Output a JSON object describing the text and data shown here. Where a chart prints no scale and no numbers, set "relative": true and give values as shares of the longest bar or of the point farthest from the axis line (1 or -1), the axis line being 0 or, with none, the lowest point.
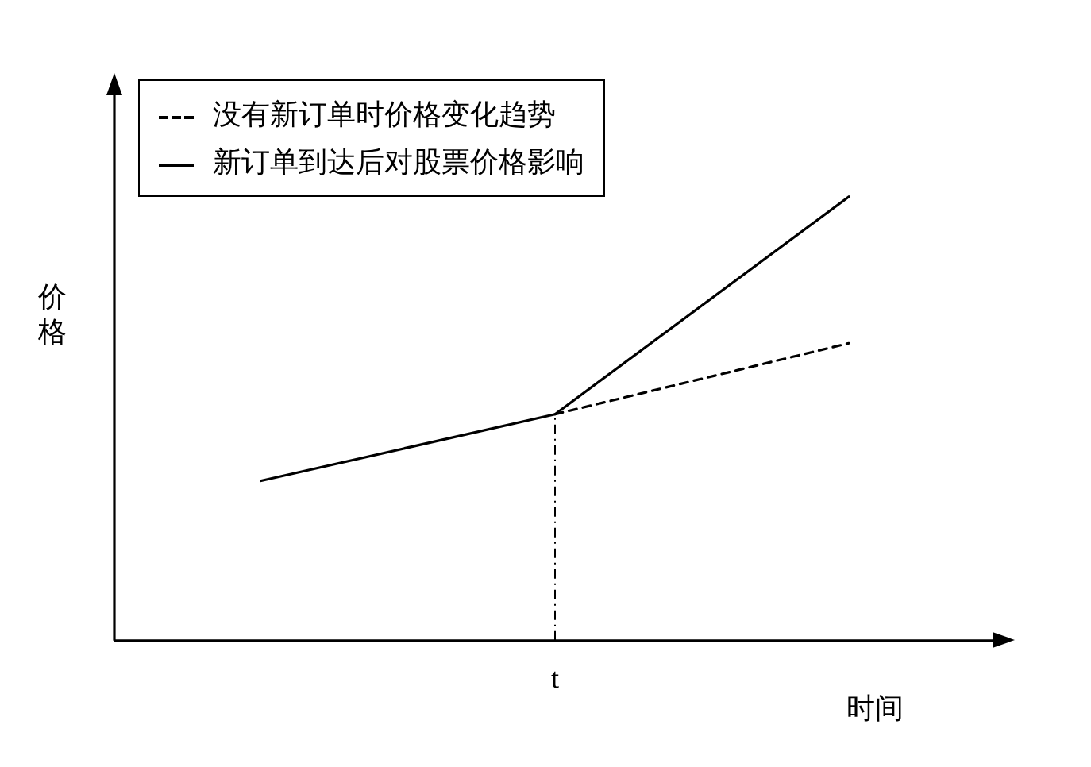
{
  "chart_data": {
    "type": "line",
    "relative": true,
    "xlabel": "时间",
    "ylabel": "价格",
    "categories": [
      null,
      null,
      null
    ],
    "annotations": [
      "t"
    ],
    "series": [
      {
        "name": "没有新订单时价格变化趋势",
        "color": "#000000",
        "line_style": "dashed",
        "values": [
          null,
          0.51,
          0.67
        ]
      },
      {
        "name": "新订单到达后对股票价格影响",
        "color": "#000000",
        "line_style": "solid",
        "values": [
          0.36,
          0.51,
          1
        ]
      }
    ],
    "legend": "top left",
    "grid": false,
    "marker": "none"
  }
}
